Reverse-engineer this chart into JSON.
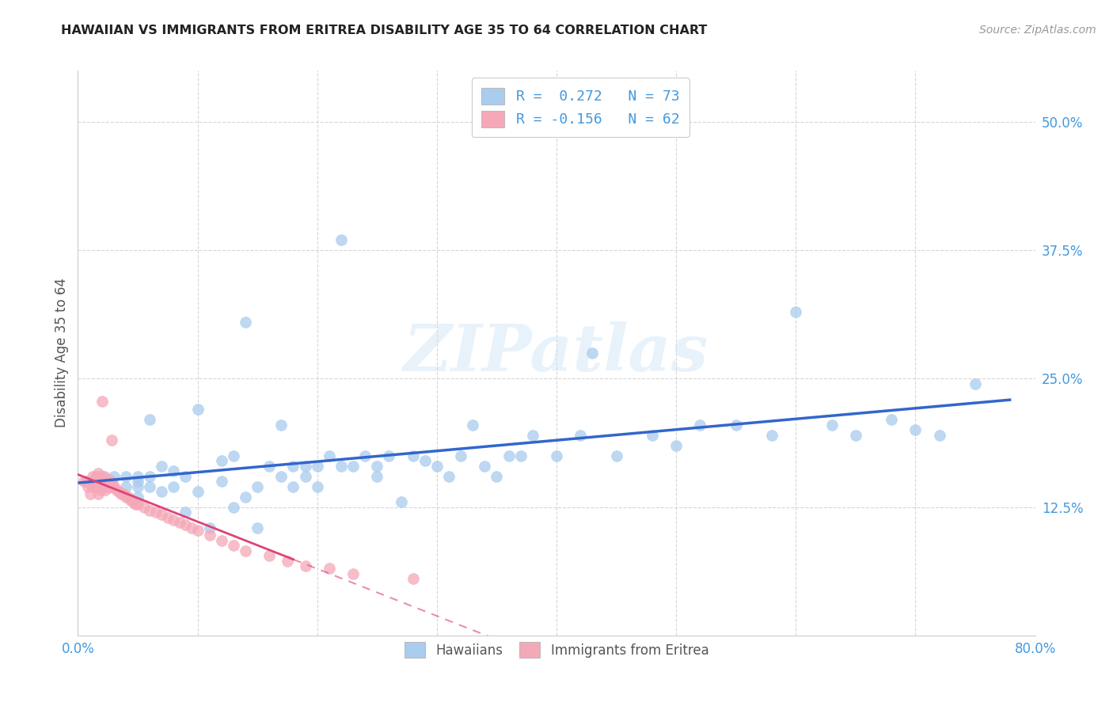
{
  "title": "HAWAIIAN VS IMMIGRANTS FROM ERITREA DISABILITY AGE 35 TO 64 CORRELATION CHART",
  "source": "Source: ZipAtlas.com",
  "ylabel": "Disability Age 35 to 64",
  "xlim": [
    0.0,
    0.8
  ],
  "ylim": [
    0.0,
    0.55
  ],
  "xticks": [
    0.0,
    0.1,
    0.2,
    0.3,
    0.4,
    0.5,
    0.6,
    0.7,
    0.8
  ],
  "xticklabels": [
    "0.0%",
    "",
    "",
    "",
    "",
    "",
    "",
    "",
    "80.0%"
  ],
  "yticks": [
    0.0,
    0.125,
    0.25,
    0.375,
    0.5
  ],
  "yticklabels": [
    "",
    "12.5%",
    "25.0%",
    "37.5%",
    "50.0%"
  ],
  "grid_color": "#cccccc",
  "watermark_text": "ZIPatlas",
  "legend_line1": "R =  0.272   N = 73",
  "legend_line2": "R = -0.156   N = 62",
  "hawaiian_color": "#aaccee",
  "eritrea_color": "#f5a8b8",
  "line_blue": "#3366cc",
  "line_pink": "#dd4477",
  "hawaiian_scatter_x": [
    0.02,
    0.03,
    0.04,
    0.04,
    0.05,
    0.05,
    0.05,
    0.05,
    0.06,
    0.06,
    0.06,
    0.07,
    0.07,
    0.08,
    0.08,
    0.09,
    0.09,
    0.1,
    0.1,
    0.11,
    0.12,
    0.12,
    0.13,
    0.13,
    0.14,
    0.14,
    0.15,
    0.15,
    0.16,
    0.17,
    0.17,
    0.18,
    0.18,
    0.19,
    0.19,
    0.2,
    0.2,
    0.21,
    0.22,
    0.22,
    0.23,
    0.24,
    0.25,
    0.25,
    0.26,
    0.27,
    0.28,
    0.29,
    0.3,
    0.31,
    0.32,
    0.33,
    0.34,
    0.35,
    0.36,
    0.37,
    0.38,
    0.4,
    0.42,
    0.43,
    0.45,
    0.48,
    0.5,
    0.52,
    0.55,
    0.58,
    0.6,
    0.63,
    0.65,
    0.68,
    0.7,
    0.72,
    0.75
  ],
  "hawaiian_scatter_y": [
    0.155,
    0.155,
    0.145,
    0.155,
    0.15,
    0.135,
    0.155,
    0.145,
    0.155,
    0.145,
    0.21,
    0.14,
    0.165,
    0.145,
    0.16,
    0.12,
    0.155,
    0.14,
    0.22,
    0.105,
    0.15,
    0.17,
    0.125,
    0.175,
    0.135,
    0.305,
    0.145,
    0.105,
    0.165,
    0.155,
    0.205,
    0.145,
    0.165,
    0.155,
    0.165,
    0.165,
    0.145,
    0.175,
    0.165,
    0.385,
    0.165,
    0.175,
    0.165,
    0.155,
    0.175,
    0.13,
    0.175,
    0.17,
    0.165,
    0.155,
    0.175,
    0.205,
    0.165,
    0.155,
    0.175,
    0.175,
    0.195,
    0.175,
    0.195,
    0.275,
    0.175,
    0.195,
    0.185,
    0.205,
    0.205,
    0.195,
    0.315,
    0.205,
    0.195,
    0.21,
    0.2,
    0.195,
    0.245
  ],
  "eritrea_scatter_x": [
    0.005,
    0.007,
    0.008,
    0.01,
    0.01,
    0.012,
    0.012,
    0.013,
    0.014,
    0.015,
    0.015,
    0.016,
    0.017,
    0.017,
    0.018,
    0.018,
    0.019,
    0.02,
    0.02,
    0.02,
    0.021,
    0.022,
    0.022,
    0.023,
    0.024,
    0.025,
    0.026,
    0.027,
    0.028,
    0.028,
    0.029,
    0.03,
    0.032,
    0.034,
    0.036,
    0.038,
    0.04,
    0.042,
    0.044,
    0.046,
    0.048,
    0.05,
    0.055,
    0.06,
    0.065,
    0.07,
    0.075,
    0.08,
    0.085,
    0.09,
    0.095,
    0.1,
    0.11,
    0.12,
    0.13,
    0.14,
    0.16,
    0.175,
    0.19,
    0.21,
    0.23,
    0.28
  ],
  "eritrea_scatter_y": [
    0.15,
    0.15,
    0.145,
    0.148,
    0.138,
    0.145,
    0.155,
    0.148,
    0.152,
    0.145,
    0.155,
    0.148,
    0.158,
    0.138,
    0.155,
    0.148,
    0.142,
    0.15,
    0.145,
    0.228,
    0.148,
    0.155,
    0.148,
    0.142,
    0.148,
    0.145,
    0.152,
    0.148,
    0.145,
    0.19,
    0.148,
    0.145,
    0.142,
    0.14,
    0.138,
    0.138,
    0.135,
    0.135,
    0.132,
    0.13,
    0.128,
    0.128,
    0.125,
    0.122,
    0.12,
    0.118,
    0.115,
    0.112,
    0.11,
    0.108,
    0.105,
    0.102,
    0.098,
    0.092,
    0.088,
    0.082,
    0.078,
    0.072,
    0.068,
    0.065,
    0.06,
    0.055
  ]
}
